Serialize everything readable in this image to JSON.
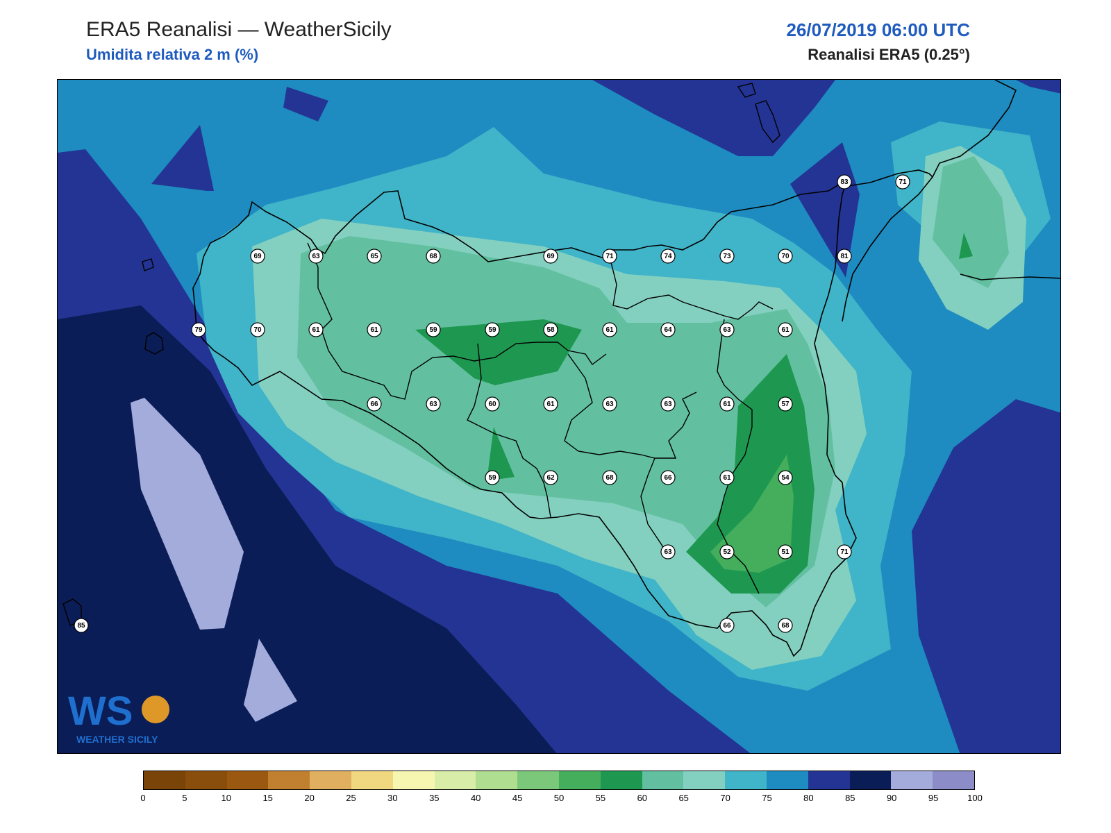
{
  "header": {
    "title": "ERA5 Reanalisi — WeatherSicily",
    "subtitle": "Umidita relativa 2 m (%)",
    "datetime": "26/07/2019 06:00 UTC",
    "source": "Reanalisi ERA5 (0.25°)"
  },
  "colorbar": {
    "ticks": [
      "0",
      "5",
      "10",
      "15",
      "20",
      "25",
      "30",
      "35",
      "40",
      "45",
      "50",
      "55",
      "60",
      "65",
      "70",
      "75",
      "80",
      "85",
      "90",
      "95",
      "100"
    ],
    "colors": [
      "#7a4308",
      "#8a4e0c",
      "#9a5810",
      "#c08030",
      "#e0b060",
      "#f0d880",
      "#f6f6b0",
      "#d8eea8",
      "#b0de90",
      "#7cc87a",
      "#44ae5c",
      "#1e9850",
      "#62c0a0",
      "#84d0c0",
      "#40b4c8",
      "#1e8cc0",
      "#243494",
      "#0b1d56",
      "#a4acdc",
      "#8c8cc8"
    ]
  },
  "stations": [
    {
      "v": "69"
    },
    {
      "v": "63"
    },
    {
      "v": "65"
    },
    {
      "v": "68"
    },
    {
      "v": "69"
    },
    {
      "v": "71"
    },
    {
      "v": "74"
    },
    {
      "v": "73"
    },
    {
      "v": "70"
    },
    {
      "v": "81"
    },
    {
      "v": "83"
    },
    {
      "v": "71"
    },
    {
      "v": "79"
    },
    {
      "v": "70"
    },
    {
      "v": "61"
    },
    {
      "v": "61"
    },
    {
      "v": "59"
    },
    {
      "v": "59"
    },
    {
      "v": "58"
    },
    {
      "v": "61"
    },
    {
      "v": "64"
    },
    {
      "v": "63"
    },
    {
      "v": "61"
    },
    {
      "v": "66"
    },
    {
      "v": "63"
    },
    {
      "v": "60"
    },
    {
      "v": "61"
    },
    {
      "v": "63"
    },
    {
      "v": "63"
    },
    {
      "v": "61"
    },
    {
      "v": "57"
    },
    {
      "v": "59"
    },
    {
      "v": "62"
    },
    {
      "v": "68"
    },
    {
      "v": "66"
    },
    {
      "v": "61"
    },
    {
      "v": "54"
    },
    {
      "v": "63"
    },
    {
      "v": "52"
    },
    {
      "v": "51"
    },
    {
      "v": "71"
    },
    {
      "v": "66"
    },
    {
      "v": "68"
    },
    {
      "v": "85"
    }
  ],
  "logo": {
    "letters": "WS",
    "name": "WEATHER SICILY"
  }
}
